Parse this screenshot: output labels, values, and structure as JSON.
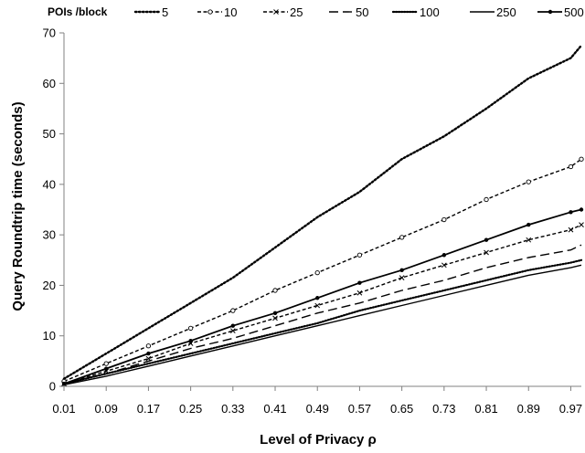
{
  "chart_data": {
    "type": "line",
    "xlabel": "Level of Privacy ρ",
    "ylabel": "Query Roundtrip time (seconds)",
    "legend_title": "POIs /block",
    "legend_position": "top",
    "xlim": [
      0.01,
      0.99
    ],
    "ylim": [
      0,
      70
    ],
    "x_tick_labels": [
      "0.01",
      "0.09",
      "0.17",
      "0.25",
      "0.33",
      "0.41",
      "0.49",
      "0.57",
      "0.65",
      "0.73",
      "0.81",
      "0.89",
      "0.97"
    ],
    "y_ticks": [
      0,
      10,
      20,
      30,
      40,
      50,
      60,
      70
    ],
    "grid": false,
    "x": [
      0.01,
      0.09,
      0.17,
      0.25,
      0.33,
      0.41,
      0.49,
      0.57,
      0.65,
      0.73,
      0.81,
      0.89,
      0.97,
      0.99
    ],
    "series": [
      {
        "name": "5",
        "style": "dotted-medium",
        "values": [
          1.5,
          6.5,
          11.5,
          16.5,
          21.5,
          27.5,
          33.5,
          38.5,
          45.0,
          49.5,
          55.0,
          61.0,
          65.0,
          67.5
        ]
      },
      {
        "name": "10",
        "style": "dash-open-marker",
        "values": [
          1.0,
          4.5,
          8.0,
          11.5,
          15.0,
          19.0,
          22.5,
          26.0,
          29.5,
          33.0,
          37.0,
          40.5,
          43.5,
          45.0
        ]
      },
      {
        "name": "25",
        "style": "dash-star-marker",
        "values": [
          0.5,
          3.0,
          5.5,
          8.5,
          11.0,
          13.5,
          16.0,
          18.5,
          21.5,
          24.0,
          26.5,
          29.0,
          31.0,
          32.0
        ]
      },
      {
        "name": "50",
        "style": "long-dash",
        "values": [
          0.5,
          2.5,
          5.0,
          7.5,
          9.5,
          12.0,
          14.5,
          16.5,
          19.0,
          21.0,
          23.5,
          25.5,
          27.0,
          28.0
        ]
      },
      {
        "name": "100",
        "style": "dotted-dense",
        "values": [
          0.5,
          2.5,
          4.5,
          6.5,
          8.5,
          10.5,
          12.5,
          15.0,
          17.0,
          19.0,
          21.0,
          23.0,
          24.5,
          25.0
        ]
      },
      {
        "name": "250",
        "style": "solid-thin",
        "values": [
          0.3,
          2.0,
          4.0,
          6.0,
          8.0,
          10.0,
          12.0,
          14.0,
          16.0,
          18.0,
          20.0,
          22.0,
          23.5,
          24.0
        ]
      },
      {
        "name": "500",
        "style": "solid-marker",
        "values": [
          0.5,
          3.5,
          6.5,
          9.0,
          12.0,
          14.5,
          17.5,
          20.5,
          23.0,
          26.0,
          29.0,
          32.0,
          34.5,
          35.0
        ]
      }
    ]
  }
}
